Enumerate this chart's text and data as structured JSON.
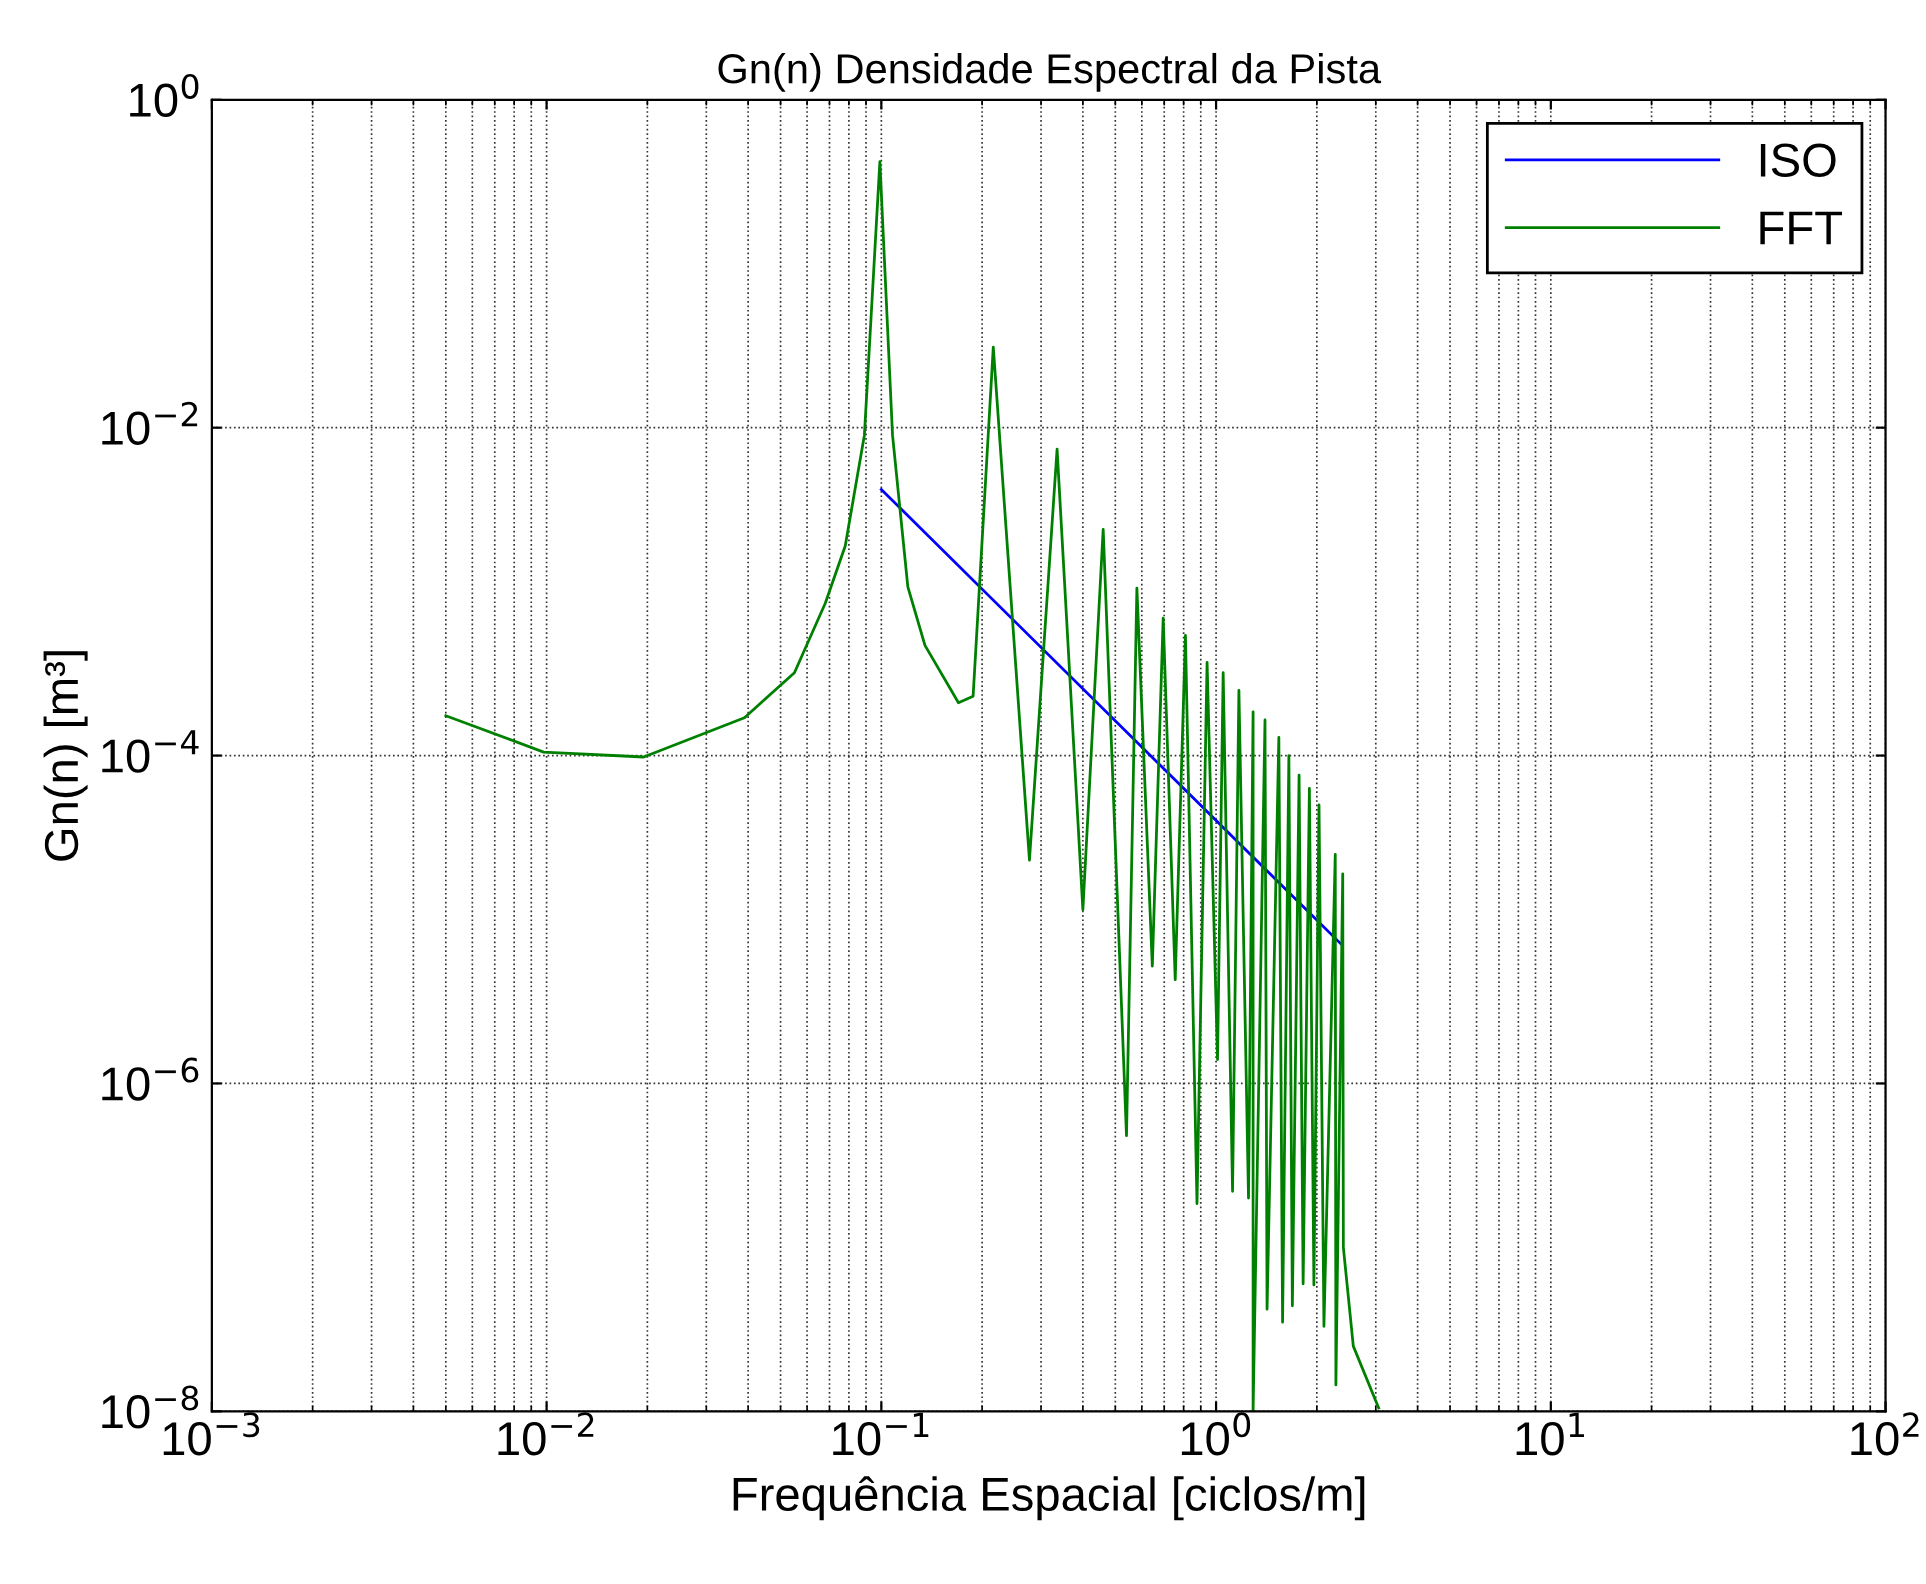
{
  "chart_data": {
    "type": "line",
    "title": "Gn(n) Densidade Espectral da Pista",
    "xlabel": "Frequência Espacial [ciclos/m]",
    "ylabel": "Gn(n) [m³]",
    "log": "xy",
    "grid": true,
    "legend": "top right",
    "line_style": "solid",
    "marker": "none",
    "xlim": [
      0.001,
      100
    ],
    "ylim": [
      1e-08,
      1
    ],
    "xticks": [
      {
        "value": 0.001,
        "label": "10$^{−3}$"
      },
      {
        "value": 0.01,
        "label": "10$^{−2}$"
      },
      {
        "value": 0.1,
        "label": "10$^{−1}$"
      },
      {
        "value": 1,
        "label": "10$^{0}$"
      },
      {
        "value": 10,
        "label": "10$^{1}$"
      },
      {
        "value": 100,
        "label": "10$^{2}$"
      }
    ],
    "yticks": [
      {
        "value": 1e-08,
        "label": "10$^{−8}$"
      },
      {
        "value": 1e-06,
        "label": "10$^{−6}$"
      },
      {
        "value": 0.0001,
        "label": "10$^{−4}$"
      },
      {
        "value": 0.01,
        "label": "10$^{−2}$"
      },
      {
        "value": 1,
        "label": "10$^{0}$"
      }
    ],
    "series": [
      {
        "name": "ISO",
        "color": "#0000ff",
        "x": [
          0.1,
          2.36
        ],
        "values": [
          0.0042,
          7.1e-06
        ]
      },
      {
        "name": "FFT",
        "color": "#008000",
        "x": [
          0.005,
          0.0098,
          0.0195,
          0.039,
          0.055,
          0.068,
          0.078,
          0.089,
          0.099,
          0.108,
          0.12,
          0.135,
          0.17,
          0.188,
          0.216,
          0.277,
          0.335,
          0.4,
          0.46,
          0.54,
          0.58,
          0.645,
          0.695,
          0.755,
          0.81,
          0.877,
          0.94,
          1.01,
          1.05,
          1.12,
          1.17,
          1.25,
          1.29,
          1.29,
          1.4,
          1.42,
          1.54,
          1.58,
          1.65,
          1.69,
          1.77,
          1.82,
          1.9,
          1.96,
          2.03,
          2.1,
          2.27,
          2.28,
          2.39,
          2.4,
          2.57,
          3.06
        ],
        "values": [
          0.000175,
          0.000105,
          9.8e-05,
          0.00017,
          0.00032,
          0.00085,
          0.0019,
          0.009,
          0.42,
          0.009,
          0.00107,
          0.00047,
          0.00021,
          0.00023,
          0.031,
          2.3e-05,
          0.0074,
          1.15e-05,
          0.0024,
          4.8e-07,
          0.00105,
          5.2e-06,
          0.00069,
          4.3e-06,
          0.00054,
          1.85e-07,
          0.00037,
          1.4e-06,
          0.00032,
          2.2e-07,
          0.00025,
          2e-07,
          0.000185,
          1e-08,
          0.000165,
          4.2e-08,
          0.000129,
          3.5e-08,
          0.0001,
          4.4e-08,
          7.6e-05,
          6e-08,
          6.3e-05,
          5.9e-08,
          5e-05,
          3.3e-08,
          2.5e-05,
          1.45e-08,
          1.9e-05,
          1e-07,
          2.5e-08,
          1.05e-08
        ]
      }
    ]
  }
}
